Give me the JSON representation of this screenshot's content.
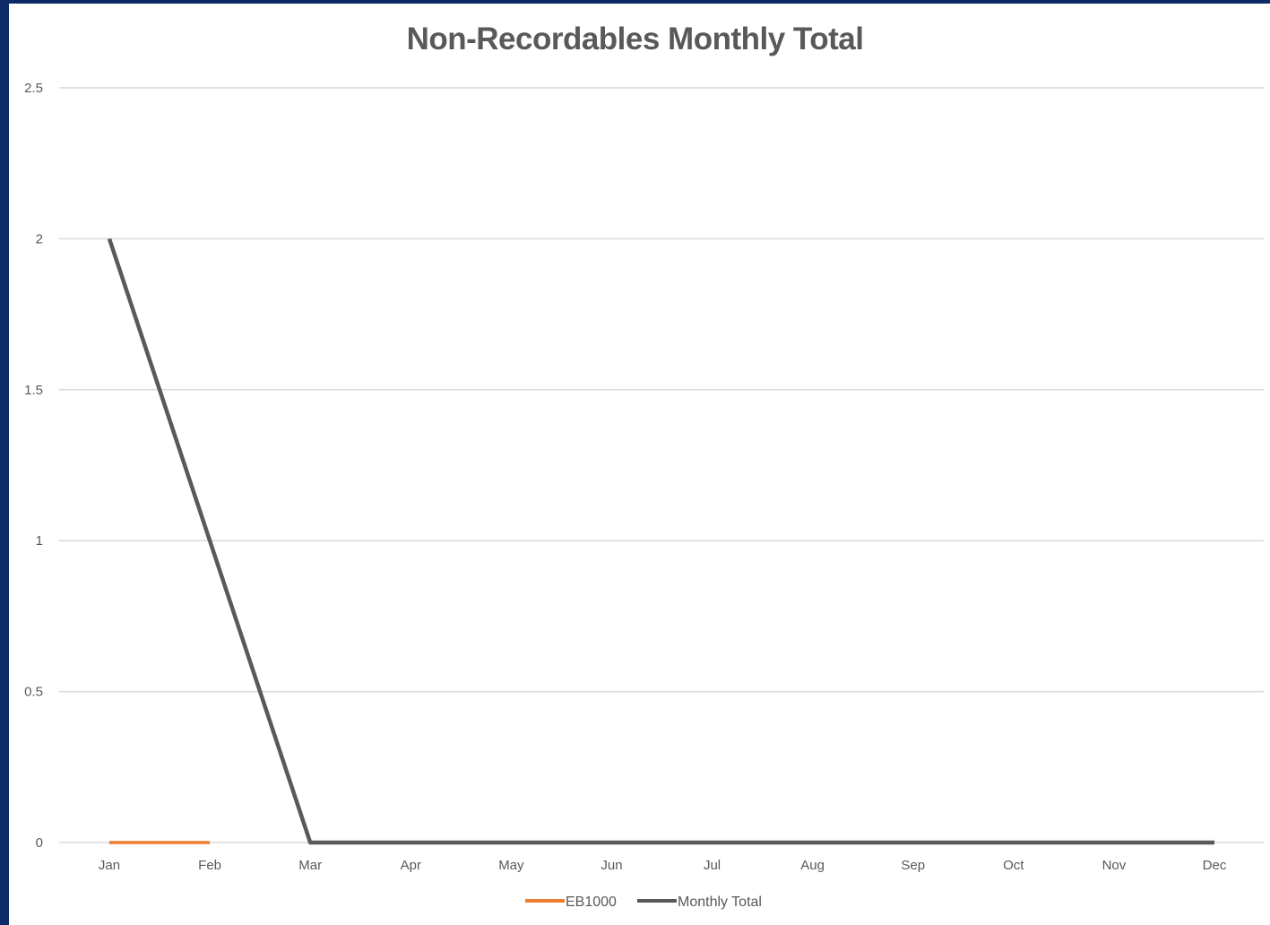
{
  "chart_data": {
    "type": "line",
    "title": "Non-Recordables Monthly Total",
    "xlabel": "",
    "ylabel": "",
    "categories": [
      "Jan",
      "Feb",
      "Mar",
      "Apr",
      "May",
      "Jun",
      "Jul",
      "Aug",
      "Sep",
      "Oct",
      "Nov",
      "Dec"
    ],
    "ylim": [
      0,
      2.5
    ],
    "yticks": [
      "0",
      "0.5",
      "1",
      "1.5",
      "2",
      "2.5"
    ],
    "grid": true,
    "legend_position": "bottom",
    "series": [
      {
        "name": "EB1000",
        "color": "#ed7d31",
        "values": [
          0,
          0,
          null,
          null,
          null,
          null,
          null,
          null,
          null,
          null,
          null,
          null
        ]
      },
      {
        "name": "Monthly Total",
        "color": "#595959",
        "values": [
          2,
          1,
          0,
          0,
          0,
          0,
          0,
          0,
          0,
          0,
          0,
          0
        ]
      }
    ]
  },
  "colors": {
    "background_border": "#0b2a66",
    "gridline": "#d9d9d9"
  }
}
